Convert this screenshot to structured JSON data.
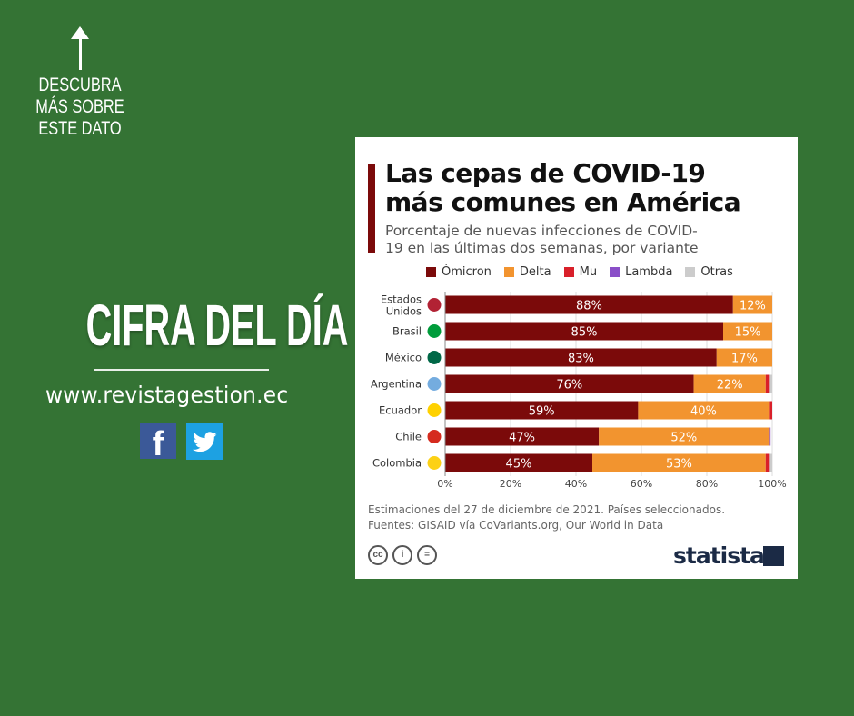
{
  "side": {
    "cta": "DESCUBRA MÁS SOBRE ESTE DATO",
    "headline": "CIFRA DEL DÍA",
    "url": "www.revistagestion.ec",
    "social": [
      "facebook",
      "twitter"
    ]
  },
  "card": {
    "title": "Las cepas de COVID-19 más comunes en América",
    "subtitle": "Porcentaje de nuevas infecciones de COVID-19 en las últimas dos semanas, por variante",
    "note1": "Estimaciones del 27 de diciembre de 2021. Países seleccionados.",
    "note2": "Fuentes: GISAID vía CoVariants.org, Our World in Data",
    "brand": "statista",
    "license_icons": [
      "cc",
      "by",
      "nd"
    ]
  },
  "chart_data": {
    "type": "bar",
    "orientation": "horizontal-stacked",
    "title": "Las cepas de COVID-19 más comunes en América",
    "categories": [
      "Estados Unidos",
      "Brasil",
      "México",
      "Argentina",
      "Ecuador",
      "Chile",
      "Colombia"
    ],
    "series": [
      {
        "name": "Ómicron",
        "color": "#7b0a0a",
        "values": [
          88,
          85,
          83,
          76,
          59,
          47,
          45
        ]
      },
      {
        "name": "Delta",
        "color": "#f2942f",
        "values": [
          12,
          15,
          17,
          22,
          40,
          52,
          53
        ]
      },
      {
        "name": "Mu",
        "color": "#d9202a",
        "values": [
          0,
          0,
          0,
          1,
          1,
          0,
          1
        ]
      },
      {
        "name": "Lambda",
        "color": "#8a4fc8",
        "values": [
          0,
          0,
          0,
          0,
          0,
          0.5,
          0
        ]
      },
      {
        "name": "Otras",
        "color": "#cccccc",
        "values": [
          0,
          0,
          0,
          1,
          0,
          0,
          1
        ]
      }
    ],
    "labelled_series": [
      "Ómicron",
      "Delta"
    ],
    "xticks": [
      "0%",
      "20%",
      "40%",
      "60%",
      "80%",
      "100%"
    ],
    "xlim": [
      0,
      100
    ],
    "grid": true,
    "legend": "top"
  }
}
